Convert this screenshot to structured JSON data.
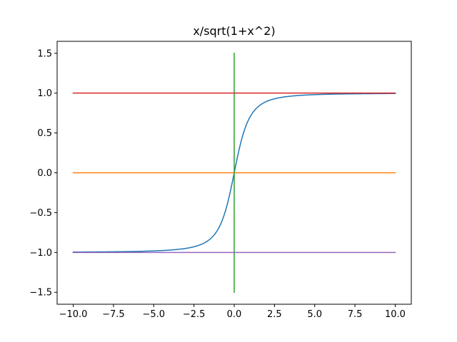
{
  "chart_data": {
    "type": "line",
    "title": "x/sqrt(1+x^2)",
    "xlabel": "",
    "ylabel": "",
    "xlim": [
      -11.0,
      11.0
    ],
    "ylim": [
      -1.65,
      1.65
    ],
    "grid": false,
    "xticks": [
      -10.0,
      -7.5,
      -5.0,
      -2.5,
      0.0,
      2.5,
      5.0,
      7.5,
      10.0
    ],
    "xtick_labels": [
      "−10.0",
      "−7.5",
      "−5.0",
      "−2.5",
      "0.0",
      "2.5",
      "5.0",
      "7.5",
      "10.0"
    ],
    "yticks": [
      -1.5,
      -1.0,
      -0.5,
      0.0,
      0.5,
      1.0,
      1.5
    ],
    "ytick_labels": [
      "−1.5",
      "−1.0",
      "−0.5",
      "0.0",
      "0.5",
      "1.0",
      "1.5"
    ],
    "series": [
      {
        "color": "#1f77b4",
        "function": "x/sqrt(1+x^2)",
        "x_range": [
          -10,
          10
        ]
      },
      {
        "color": "#ff7f0e",
        "x": [
          -10,
          10
        ],
        "y": [
          0,
          0
        ]
      },
      {
        "color": "#2ca02c",
        "x": [
          0,
          0
        ],
        "y": [
          -1.5,
          1.5
        ]
      },
      {
        "color": "#d62728",
        "x": [
          -10,
          10
        ],
        "y": [
          1,
          1
        ]
      },
      {
        "color": "#9467bd",
        "x": [
          -10,
          10
        ],
        "y": [
          -1,
          -1
        ]
      }
    ]
  }
}
